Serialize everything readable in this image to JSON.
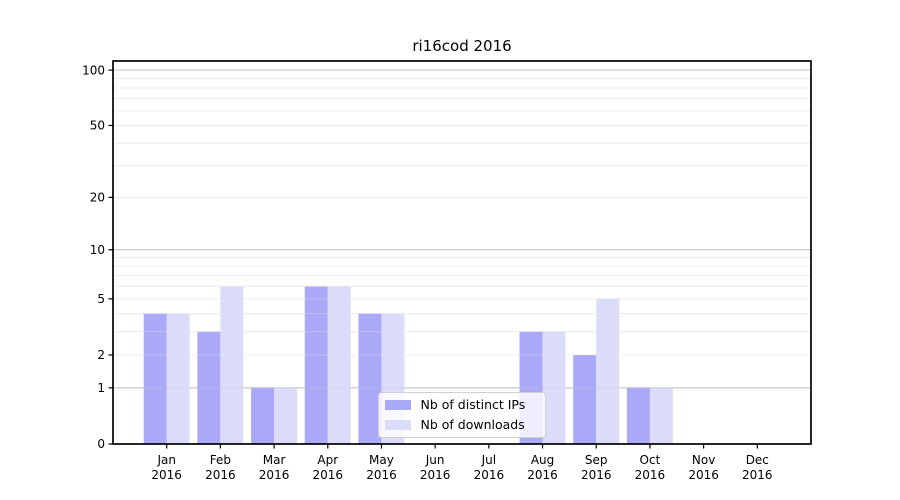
{
  "page": {
    "background": "#ffffff"
  },
  "chart_data": {
    "type": "bar",
    "title": "ri16cod 2016",
    "xlabel": "",
    "ylabel": "",
    "categories": [
      "Jan 2016",
      "Feb 2016",
      "Mar 2016",
      "Apr 2016",
      "May 2016",
      "Jun 2016",
      "Jul 2016",
      "Aug 2016",
      "Sep 2016",
      "Oct 2016",
      "Nov 2016",
      "Dec 2016"
    ],
    "series": [
      {
        "name": "Nb of distinct IPs",
        "color": "#a9a9f7",
        "values": [
          4,
          3,
          1,
          6,
          4,
          0,
          0,
          3,
          2,
          1,
          0,
          0
        ]
      },
      {
        "name": "Nb of downloads",
        "color": "#dbdbfa",
        "values": [
          4,
          6,
          1,
          6,
          4,
          0,
          0,
          3,
          5,
          1,
          0,
          0
        ]
      }
    ],
    "yscale": "log1p",
    "ylim": [
      0,
      112
    ],
    "yticks": [
      0,
      1,
      2,
      5,
      10,
      20,
      50,
      100
    ],
    "grid": {
      "major_values": [
        1,
        10,
        100
      ],
      "minor_values": [
        2,
        3,
        4,
        5,
        6,
        7,
        8,
        9,
        20,
        30,
        40,
        50,
        60,
        70,
        80,
        90
      ],
      "major_color": "#c9c9c9",
      "minor_color": "#ececec"
    },
    "legend": {
      "position": "lower-center",
      "background": "#ffffff",
      "border_color": "#cfcfcf",
      "entries": [
        "Nb of distinct IPs",
        "Nb of downloads"
      ]
    },
    "axis_color": "#000000",
    "text_color": "#000000"
  }
}
